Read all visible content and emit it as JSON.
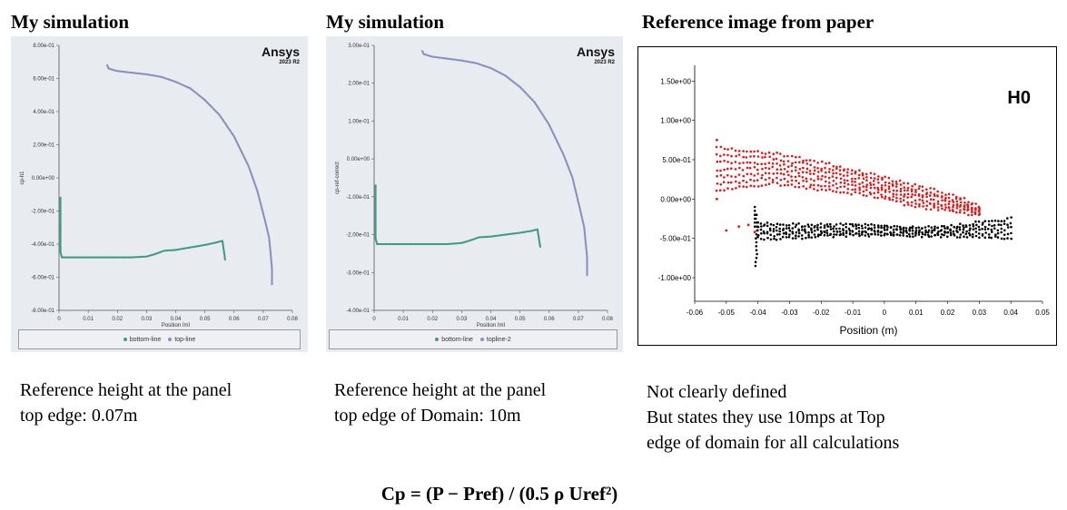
{
  "headings": {
    "left": "My simulation",
    "middle": "My simulation",
    "right": "Reference image from paper"
  },
  "captions": {
    "left": [
      "Reference height at the panel",
      "top edge: 0.07m"
    ],
    "middle": [
      "Reference height at the panel",
      "top edge of Domain: 10m"
    ],
    "right": [
      "Not clearly defined",
      "But states they use 10mps at Top",
      "edge of domain for all calculations"
    ]
  },
  "formula": "Cp = (P − Pref) / (0.5 ρ Uref²)",
  "logo": {
    "name": "Ansys",
    "version": "2023 R2"
  },
  "colors": {
    "top": "#8a8fbd",
    "bottom": "#3f9a86",
    "ref_red": "#ee1111",
    "ref_black": "#000000"
  },
  "chart_data": [
    {
      "type": "scatter",
      "title": "",
      "xlabel": "Position [m]",
      "ylabel": "cp-h1",
      "xlim": [
        0,
        0.08
      ],
      "ylim": [
        -0.8,
        0.8
      ],
      "xticks": [
        0,
        0.01,
        0.02,
        0.03,
        0.04,
        0.05,
        0.06,
        0.07,
        0.08
      ],
      "xtick_labels": [
        "0",
        "0.01",
        "0.02",
        "0.03",
        "0.04",
        "0.05",
        "0.06",
        "0.07",
        "0.08"
      ],
      "yticks": [
        0.8,
        0.6,
        0.4,
        0.2,
        0,
        -0.2,
        -0.4,
        -0.6,
        -0.8
      ],
      "ytick_labels": [
        "8.00e-01",
        "6.00e-01",
        "4.00e-01",
        "2.00e-01",
        "0.00e+00",
        "-2.00e-01",
        "-4.00e-01",
        "-6.00e-01",
        "-8.00e-01"
      ],
      "legend": "bottom",
      "series": [
        {
          "name": "bottom-line",
          "color": "#3f9a86",
          "x": [
            0.0005,
            0.0005,
            0.0005,
            0.0005,
            0.0005,
            0.001,
            0.005,
            0.01,
            0.015,
            0.02,
            0.025,
            0.03,
            0.033,
            0.036,
            0.04,
            0.045,
            0.05,
            0.054,
            0.056,
            0.057
          ],
          "y": [
            -0.12,
            -0.2,
            -0.3,
            -0.4,
            -0.45,
            -0.48,
            -0.48,
            -0.48,
            -0.48,
            -0.48,
            -0.48,
            -0.475,
            -0.46,
            -0.44,
            -0.435,
            -0.42,
            -0.405,
            -0.39,
            -0.38,
            -0.5
          ]
        },
        {
          "name": "top-line",
          "color": "#8a8fbd",
          "x": [
            0.0165,
            0.017,
            0.02,
            0.025,
            0.03,
            0.035,
            0.04,
            0.045,
            0.05,
            0.055,
            0.06,
            0.065,
            0.068,
            0.0705,
            0.072,
            0.0725,
            0.073,
            0.073
          ],
          "y": [
            0.68,
            0.66,
            0.645,
            0.635,
            0.625,
            0.61,
            0.58,
            0.54,
            0.47,
            0.38,
            0.25,
            0.07,
            -0.08,
            -0.25,
            -0.36,
            -0.45,
            -0.55,
            -0.65
          ]
        }
      ]
    },
    {
      "type": "scatter",
      "title": "",
      "xlabel": "Position [m]",
      "ylabel": "cp-ref-correct",
      "xlim": [
        0,
        0.08
      ],
      "ylim": [
        -0.4,
        0.3
      ],
      "xticks": [
        0,
        0.01,
        0.02,
        0.03,
        0.04,
        0.05,
        0.06,
        0.07,
        0.08
      ],
      "xtick_labels": [
        "0",
        "0.01",
        "0.02",
        "0.03",
        "0.04",
        "0.05",
        "0.06",
        "0.07",
        "0.08"
      ],
      "yticks": [
        0.3,
        0.2,
        0.1,
        0,
        -0.1,
        -0.2,
        -0.3,
        -0.4
      ],
      "ytick_labels": [
        "3.00e-01",
        "2.00e-01",
        "1.00e-01",
        "0.00e+00",
        "-1.00e-01",
        "-2.00e-01",
        "-3.00e-01",
        "-4.00e-01"
      ],
      "legend": "bottom",
      "series": [
        {
          "name": "bottom-line",
          "color": "#3f9a86",
          "x": [
            0.0005,
            0.0005,
            0.0005,
            0.0005,
            0.0005,
            0.001,
            0.005,
            0.01,
            0.015,
            0.02,
            0.025,
            0.03,
            0.033,
            0.036,
            0.04,
            0.045,
            0.05,
            0.054,
            0.056,
            0.057
          ],
          "y": [
            -0.07,
            -0.11,
            -0.15,
            -0.19,
            -0.21,
            -0.225,
            -0.225,
            -0.225,
            -0.225,
            -0.225,
            -0.225,
            -0.222,
            -0.215,
            -0.207,
            -0.205,
            -0.2,
            -0.195,
            -0.19,
            -0.186,
            -0.235
          ]
        },
        {
          "name": "topline-2",
          "color": "#8a8fbd",
          "x": [
            0.0165,
            0.017,
            0.02,
            0.025,
            0.03,
            0.035,
            0.04,
            0.045,
            0.05,
            0.055,
            0.06,
            0.065,
            0.068,
            0.0705,
            0.072,
            0.0725,
            0.073,
            0.073
          ],
          "y": [
            0.285,
            0.277,
            0.27,
            0.265,
            0.26,
            0.253,
            0.24,
            0.22,
            0.19,
            0.15,
            0.09,
            0.01,
            -0.05,
            -0.13,
            -0.18,
            -0.22,
            -0.26,
            -0.31
          ]
        }
      ]
    },
    {
      "type": "scatter",
      "title": "",
      "annotation": "H0",
      "xlabel": "Position (m)",
      "ylabel": "",
      "xlim": [
        -0.06,
        0.05
      ],
      "ylim": [
        -1.3,
        1.7
      ],
      "xticks": [
        -0.06,
        -0.05,
        -0.04,
        -0.03,
        -0.02,
        -0.01,
        0,
        0.01,
        0.02,
        0.03,
        0.04,
        0.05
      ],
      "xtick_labels": [
        "-0.06",
        "-0.05",
        "-0.04",
        "-0.03",
        "-0.02",
        "-0.01",
        "0",
        "0.01",
        "0.02",
        "0.03",
        "0.04",
        "0.05"
      ],
      "yticks": [
        1.5,
        1.0,
        0.5,
        0,
        -0.5,
        -1.0
      ],
      "ytick_labels": [
        "1.50e+00",
        "1.00e+00",
        "5.00e-01",
        "0.00e+00",
        "-5.00e-01",
        "-1.00e+00"
      ],
      "series": [
        {
          "color": "#ee1111",
          "band_x": [
            -0.053,
            -0.045,
            -0.035,
            -0.025,
            -0.015,
            -0.005,
            0.005,
            0.015,
            0.025,
            0.03
          ],
          "band_y_upper": [
            0.65,
            0.62,
            0.58,
            0.5,
            0.42,
            0.32,
            0.22,
            0.12,
            0.0,
            -0.1
          ],
          "band_y_lower": [
            0.1,
            0.15,
            0.2,
            0.15,
            0.1,
            0.05,
            -0.05,
            -0.12,
            -0.18,
            -0.2
          ]
        },
        {
          "color": "#000000",
          "band_x": [
            -0.04,
            -0.03,
            -0.02,
            -0.01,
            0,
            0.01,
            0.02,
            0.03,
            0.04
          ],
          "band_y_upper": [
            -0.3,
            -0.33,
            -0.33,
            -0.33,
            -0.35,
            -0.36,
            -0.35,
            -0.3,
            -0.25
          ],
          "band_y_lower": [
            -0.5,
            -0.5,
            -0.47,
            -0.46,
            -0.46,
            -0.47,
            -0.47,
            -0.48,
            -0.5
          ]
        }
      ]
    }
  ]
}
